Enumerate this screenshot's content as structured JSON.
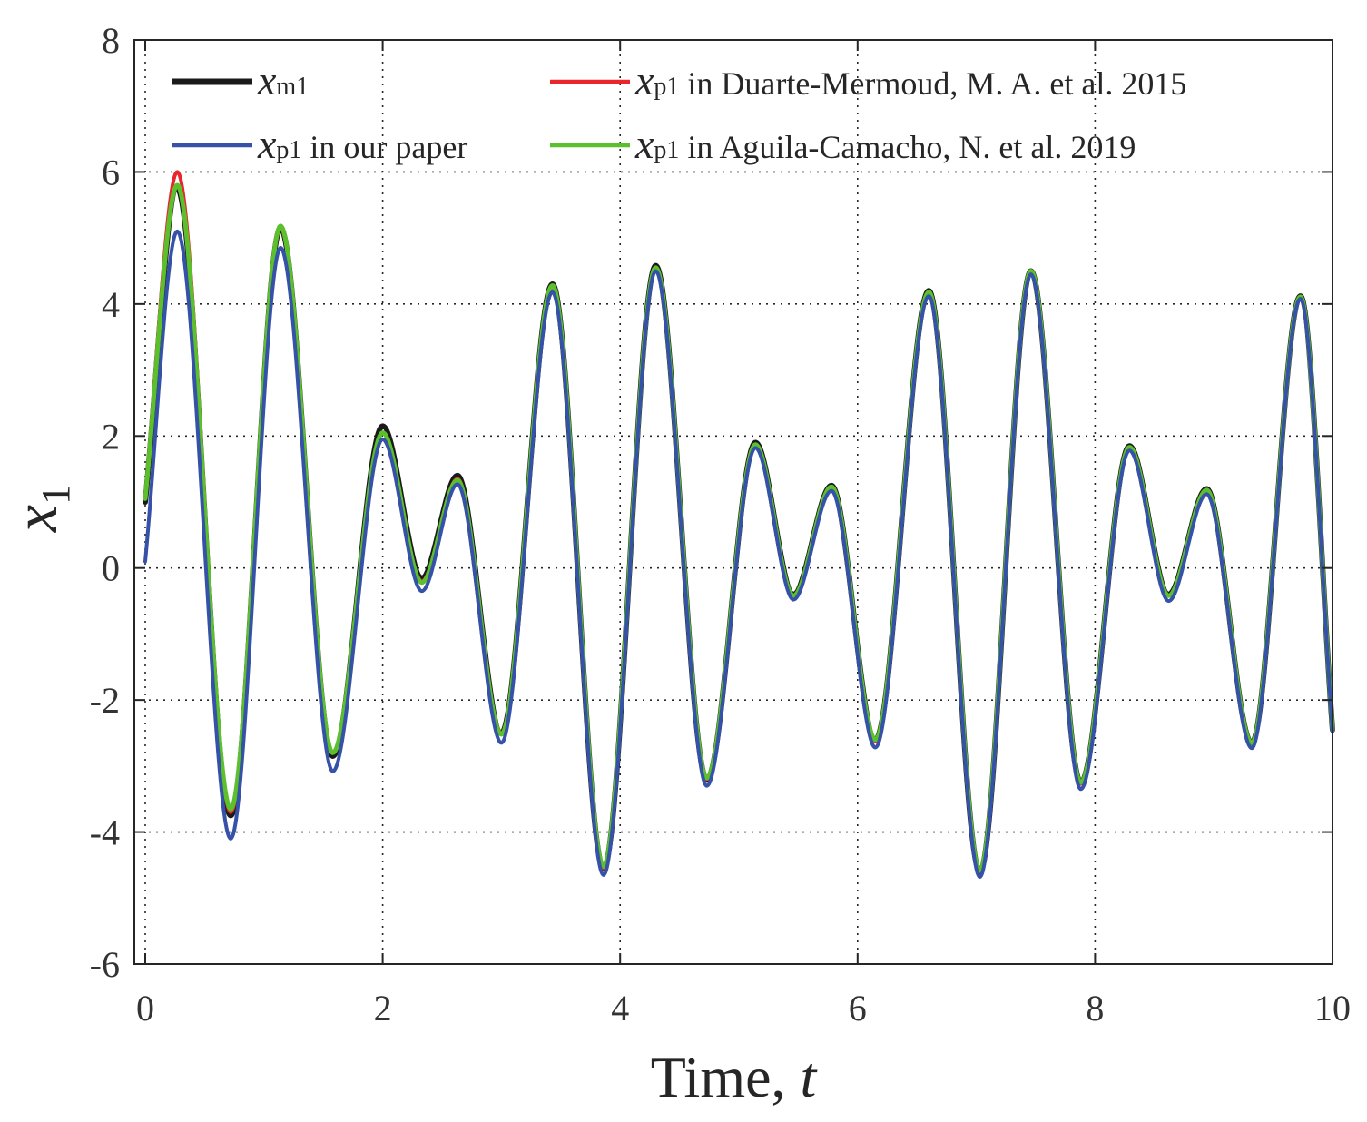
{
  "chart_data": {
    "type": "line",
    "xlabel": "Time, t",
    "xlabel_prefix": "Time, ",
    "xlabel_var": "t",
    "ylabel": "x1",
    "ylabel_var": "x",
    "ylabel_sub": "1",
    "xlim": [
      0,
      10
    ],
    "ylim": [
      -6,
      8
    ],
    "xticks": [
      0,
      2,
      4,
      6,
      8,
      10
    ],
    "yticks": [
      -6,
      -4,
      -2,
      0,
      2,
      4,
      6,
      8
    ],
    "grid": true,
    "legend_position": "top",
    "series": [
      {
        "name": "x_m1",
        "var": "x",
        "sub": "m1",
        "label_suffix": "",
        "color": "#1a1a1a",
        "points": [
          [
            0,
            1.0
          ],
          [
            0.27,
            5.75
          ],
          [
            0.72,
            -3.75
          ],
          [
            1.14,
            5.15
          ],
          [
            1.58,
            -2.85
          ],
          [
            2.0,
            2.15
          ],
          [
            2.33,
            -0.15
          ],
          [
            2.63,
            1.4
          ],
          [
            3.0,
            -2.5
          ],
          [
            3.43,
            4.3
          ],
          [
            3.86,
            -4.55
          ],
          [
            4.3,
            4.58
          ],
          [
            4.73,
            -3.2
          ],
          [
            5.14,
            1.9
          ],
          [
            5.46,
            -0.4
          ],
          [
            5.78,
            1.25
          ],
          [
            6.15,
            -2.6
          ],
          [
            6.6,
            4.2
          ],
          [
            7.03,
            -4.6
          ],
          [
            7.46,
            4.5
          ],
          [
            7.88,
            -3.25
          ],
          [
            8.29,
            1.85
          ],
          [
            8.62,
            -0.4
          ],
          [
            8.94,
            1.2
          ],
          [
            9.32,
            -2.65
          ],
          [
            9.73,
            4.12
          ],
          [
            10.0,
            -2.45
          ]
        ]
      },
      {
        "name": "x_p1 in Duarte-Mermoud, M. A. et al. 2015",
        "var": "x",
        "sub": "p1",
        "label_suffix": " in Duarte-Mermoud, M. A. et al. 2015",
        "color": "#e8262b",
        "points": [
          [
            0,
            1.1
          ],
          [
            0.27,
            6.0
          ],
          [
            0.72,
            -3.7
          ],
          [
            1.14,
            5.15
          ],
          [
            1.58,
            -2.8
          ],
          [
            2.0,
            2.05
          ],
          [
            2.33,
            -0.2
          ],
          [
            2.63,
            1.35
          ],
          [
            3.0,
            -2.5
          ],
          [
            3.43,
            4.25
          ],
          [
            3.86,
            -4.55
          ],
          [
            4.3,
            4.55
          ],
          [
            4.73,
            -3.2
          ],
          [
            5.14,
            1.85
          ],
          [
            5.46,
            -0.42
          ],
          [
            5.78,
            1.22
          ],
          [
            6.15,
            -2.62
          ],
          [
            6.6,
            4.18
          ],
          [
            7.03,
            -4.6
          ],
          [
            7.46,
            4.48
          ],
          [
            7.88,
            -3.27
          ],
          [
            8.29,
            1.82
          ],
          [
            8.62,
            -0.42
          ],
          [
            8.94,
            1.17
          ],
          [
            9.32,
            -2.65
          ],
          [
            9.73,
            4.1
          ],
          [
            10.0,
            -2.45
          ]
        ]
      },
      {
        "name": "x_p1 in Aguila-Camacho, N. et al. 2019",
        "var": "x",
        "sub": "p1",
        "label_suffix": " in Aguila-Camacho, N. et al. 2019",
        "color": "#5cc02c",
        "points": [
          [
            0,
            1.05
          ],
          [
            0.27,
            5.8
          ],
          [
            0.72,
            -3.65
          ],
          [
            1.14,
            5.18
          ],
          [
            1.58,
            -2.8
          ],
          [
            2.0,
            2.05
          ],
          [
            2.33,
            -0.22
          ],
          [
            2.63,
            1.33
          ],
          [
            3.0,
            -2.52
          ],
          [
            3.43,
            4.28
          ],
          [
            3.86,
            -4.52
          ],
          [
            4.3,
            4.55
          ],
          [
            4.73,
            -3.18
          ],
          [
            5.14,
            1.87
          ],
          [
            5.46,
            -0.42
          ],
          [
            5.78,
            1.23
          ],
          [
            6.15,
            -2.6
          ],
          [
            6.6,
            4.18
          ],
          [
            7.03,
            -4.58
          ],
          [
            7.46,
            4.5
          ],
          [
            7.88,
            -3.25
          ],
          [
            8.29,
            1.83
          ],
          [
            8.62,
            -0.42
          ],
          [
            8.94,
            1.18
          ],
          [
            9.32,
            -2.65
          ],
          [
            9.73,
            4.11
          ],
          [
            10.0,
            -2.45
          ]
        ]
      },
      {
        "name": "x_p1 in our paper",
        "var": "x",
        "sub": "p1",
        "label_suffix": " in our paper",
        "color": "#3552a8",
        "points": [
          [
            0,
            0.1
          ],
          [
            0.27,
            5.1
          ],
          [
            0.72,
            -4.1
          ],
          [
            1.14,
            4.85
          ],
          [
            1.58,
            -3.08
          ],
          [
            2.0,
            1.95
          ],
          [
            2.33,
            -0.35
          ],
          [
            2.63,
            1.27
          ],
          [
            3.0,
            -2.65
          ],
          [
            3.43,
            4.18
          ],
          [
            3.86,
            -4.65
          ],
          [
            4.3,
            4.5
          ],
          [
            4.73,
            -3.3
          ],
          [
            5.14,
            1.82
          ],
          [
            5.46,
            -0.48
          ],
          [
            5.78,
            1.17
          ],
          [
            6.15,
            -2.72
          ],
          [
            6.6,
            4.12
          ],
          [
            7.03,
            -4.68
          ],
          [
            7.46,
            4.45
          ],
          [
            7.88,
            -3.35
          ],
          [
            8.29,
            1.78
          ],
          [
            8.62,
            -0.5
          ],
          [
            8.94,
            1.12
          ],
          [
            9.32,
            -2.73
          ],
          [
            9.73,
            4.08
          ],
          [
            10.0,
            -2.48
          ]
        ]
      }
    ]
  }
}
